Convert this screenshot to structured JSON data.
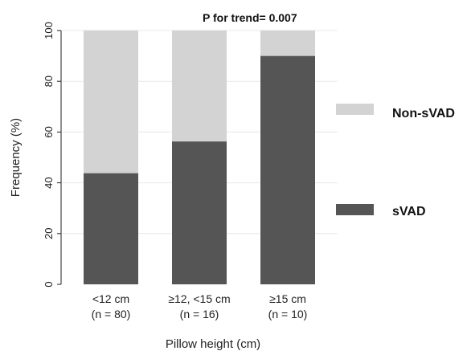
{
  "chart_data": {
    "type": "bar",
    "stacked": true,
    "categories": [
      "<12 cm",
      "≥12, <15 cm",
      "≥15 cm"
    ],
    "category_notes": [
      "(n = 80)",
      "(n = 16)",
      "(n = 10)"
    ],
    "series": [
      {
        "name": "sVAD",
        "values": [
          43.8,
          56.3,
          90.0
        ],
        "color": "#555555"
      },
      {
        "name": "Non-sVAD",
        "values": [
          56.2,
          43.7,
          10.0
        ],
        "color": "#d3d3d3"
      }
    ],
    "xlabel": "Pillow height (cm)",
    "ylabel": "Frequency (%)",
    "ylim": [
      0,
      100
    ],
    "yticks": [
      0,
      20,
      40,
      60,
      80,
      100
    ],
    "annotation": "P for trend= 0.007",
    "grid": true,
    "legend_position": "right"
  }
}
